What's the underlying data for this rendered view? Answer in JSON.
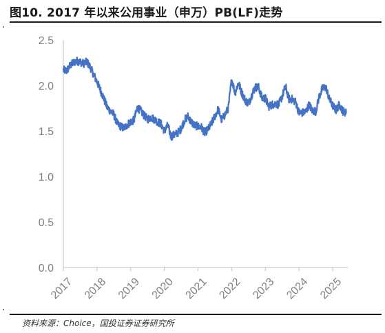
{
  "title": "图10. 2017 年以来公用事业（申万）PB(LF)走势",
  "source": "资料来源：Choice，国投证券证券研究所",
  "colors": {
    "line": "#4472c4",
    "axis": "#bfbfbf",
    "text": "#7f7f7f"
  },
  "chart_data": {
    "type": "line",
    "title": "",
    "xlabel": "",
    "ylabel": "",
    "xlim": [
      2017,
      2025.45
    ],
    "ylim": [
      0.0,
      2.5
    ],
    "x_ticks": [
      "2017",
      "2018",
      "2019",
      "2020",
      "2021",
      "2022",
      "2023",
      "2024",
      "2025"
    ],
    "y_ticks": [
      "0.0",
      "0.5",
      "1.0",
      "1.5",
      "2.0",
      "2.5"
    ],
    "grid": false,
    "legend": "none",
    "series": [
      {
        "x": [
          2017.0,
          2017.1,
          2017.2,
          2017.3,
          2017.4,
          2017.5,
          2017.6,
          2017.7,
          2017.8,
          2017.9,
          2018.0,
          2018.1,
          2018.2,
          2018.3,
          2018.4,
          2018.5,
          2018.6,
          2018.7,
          2018.8,
          2018.9,
          2019.0,
          2019.1,
          2019.2,
          2019.3,
          2019.4,
          2019.5,
          2019.6,
          2019.7,
          2019.8,
          2019.9,
          2020.0,
          2020.1,
          2020.2,
          2020.3,
          2020.4,
          2020.5,
          2020.6,
          2020.7,
          2020.8,
          2020.9,
          2021.0,
          2021.1,
          2021.2,
          2021.3,
          2021.4,
          2021.5,
          2021.6,
          2021.7,
          2021.8,
          2021.9,
          2022.0,
          2022.1,
          2022.2,
          2022.3,
          2022.4,
          2022.5,
          2022.6,
          2022.7,
          2022.8,
          2022.9,
          2023.0,
          2023.1,
          2023.2,
          2023.3,
          2023.4,
          2023.5,
          2023.6,
          2023.7,
          2023.8,
          2023.9,
          2024.0,
          2024.1,
          2024.2,
          2024.3,
          2024.4,
          2024.5,
          2024.6,
          2024.7,
          2024.8,
          2024.9,
          2025.0,
          2025.1,
          2025.2,
          2025.3,
          2025.4
        ],
        "values": [
          2.17,
          2.16,
          2.22,
          2.25,
          2.27,
          2.26,
          2.24,
          2.26,
          2.2,
          2.12,
          2.04,
          1.95,
          1.86,
          1.76,
          1.72,
          1.68,
          1.58,
          1.55,
          1.53,
          1.57,
          1.6,
          1.62,
          1.76,
          1.72,
          1.67,
          1.63,
          1.65,
          1.63,
          1.6,
          1.58,
          1.5,
          1.56,
          1.44,
          1.46,
          1.48,
          1.53,
          1.62,
          1.66,
          1.6,
          1.56,
          1.55,
          1.54,
          1.48,
          1.52,
          1.58,
          1.66,
          1.74,
          1.62,
          1.68,
          1.75,
          2.07,
          1.92,
          2.03,
          1.92,
          1.84,
          1.8,
          1.9,
          1.98,
          1.98,
          1.86,
          1.86,
          1.77,
          1.79,
          1.8,
          1.79,
          1.88,
          1.99,
          1.85,
          1.85,
          1.82,
          1.7,
          1.7,
          1.71,
          1.79,
          1.72,
          1.72,
          1.88,
          1.97,
          1.98,
          1.85,
          1.78,
          1.73,
          1.79,
          1.72,
          1.7
        ]
      }
    ]
  }
}
